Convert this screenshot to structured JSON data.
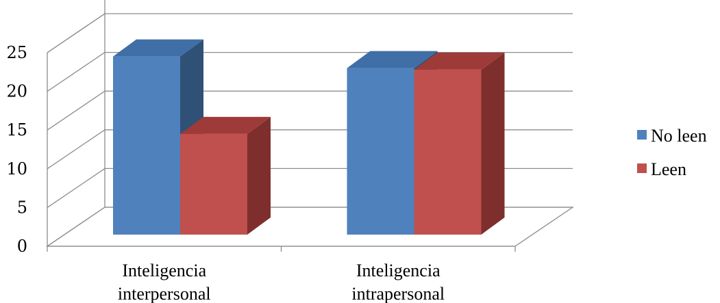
{
  "chart_data": {
    "type": "bar",
    "style": "3d-clustered-column",
    "categories": [
      "Inteligencia interpersonal",
      "Inteligencia intrapersonal"
    ],
    "category_lines": [
      [
        "Inteligencia",
        "interpersonal"
      ],
      [
        "Inteligencia",
        "intrapersonal"
      ]
    ],
    "series": [
      {
        "name": "No leen",
        "values": [
          23,
          21.5
        ],
        "color": "#4F81BD",
        "top_color": "#3F6FA6",
        "side_color": "#2F5176"
      },
      {
        "name": "Leen",
        "values": [
          13,
          21.3
        ],
        "color": "#C0504D",
        "top_color": "#9E3B38",
        "side_color": "#7E2F2D"
      }
    ],
    "title": "",
    "xlabel": "",
    "ylabel": "",
    "ylim": [
      0,
      25
    ],
    "yticks": [
      "0",
      "5",
      "10",
      "15",
      "20",
      "25"
    ],
    "grid": true,
    "legend": "right"
  }
}
